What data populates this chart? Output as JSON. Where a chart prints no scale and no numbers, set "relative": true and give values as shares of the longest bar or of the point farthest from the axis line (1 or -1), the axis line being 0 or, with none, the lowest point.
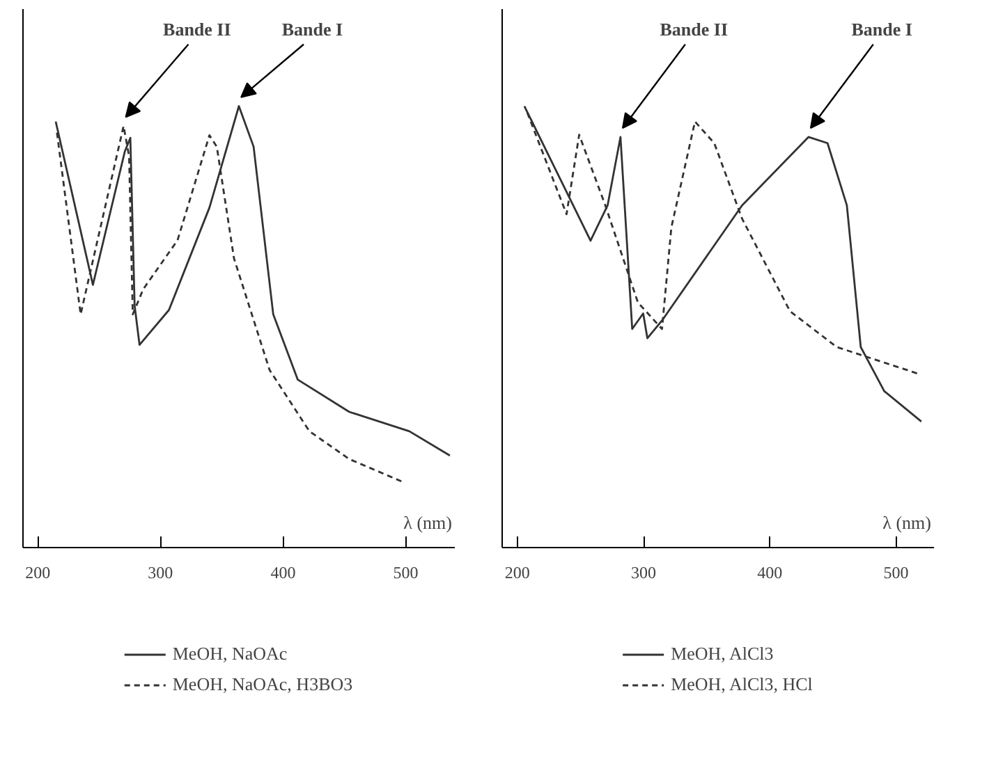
{
  "chart_data": [
    {
      "type": "line",
      "relative": true,
      "xlabel": "λ (nm)",
      "xlim": [
        188,
        540
      ],
      "xticks": [
        200,
        300,
        400,
        500
      ],
      "legend": "bottom",
      "grid": false,
      "series": [
        {
          "name": "MeOH, NaOAc",
          "color": "#333333",
          "line_style": "solid",
          "x": [
            214.7,
            245,
            271,
            275.5,
            279,
            283,
            307,
            340,
            364,
            376,
            392,
            412,
            454,
            503,
            536
          ],
          "values": [
            0.965,
            0.595,
            0.897,
            0.928,
            0.548,
            0.459,
            0.538,
            0.77,
            1.0,
            0.908,
            0.528,
            0.38,
            0.307,
            0.263,
            0.208
          ]
        },
        {
          "name": "MeOH, NaOAc, H3BO3",
          "color": "#333333",
          "line_style": "dashed",
          "x": [
            215.7,
            235,
            270,
            274.5,
            277.5,
            286,
            314,
            340,
            346,
            360,
            389,
            421.5,
            454,
            497
          ],
          "values": [
            0.94,
            0.528,
            0.955,
            0.886,
            0.528,
            0.585,
            0.696,
            0.934,
            0.908,
            0.655,
            0.402,
            0.263,
            0.2,
            0.149
          ]
        }
      ],
      "annotations": [
        {
          "text": "Bande II",
          "x": 270,
          "y": 0.955
        },
        {
          "text": "Bande I",
          "x": 364,
          "y": 1.0
        }
      ]
    },
    {
      "type": "line",
      "relative": true,
      "xlabel": "λ (nm)",
      "xlim": [
        188,
        530
      ],
      "xticks": [
        200,
        300,
        400,
        500
      ],
      "legend": "bottom",
      "grid": false,
      "series": [
        {
          "name": "MeOH, AlCl3",
          "color": "#333333",
          "line_style": "solid",
          "x": [
            205.6,
            258,
            271.5,
            281.7,
            291,
            299.7,
            303,
            314.6,
            378,
            430.6,
            445.7,
            461,
            472,
            490.6,
            520
          ],
          "values": [
            1.0,
            0.695,
            0.775,
            0.93,
            0.495,
            0.53,
            0.474,
            0.514,
            0.775,
            0.93,
            0.916,
            0.775,
            0.454,
            0.354,
            0.285
          ]
        },
        {
          "name": "MeOH, AlCl3, HCl",
          "color": "#333333",
          "line_style": "dashed",
          "x": [
            207.9,
            239,
            249,
            269.7,
            295.5,
            314.6,
            322,
            340.7,
            356,
            378,
            416,
            453,
            517
          ],
          "values": [
            0.985,
            0.755,
            0.935,
            0.775,
            0.555,
            0.495,
            0.725,
            0.965,
            0.916,
            0.745,
            0.535,
            0.454,
            0.394
          ]
        }
      ],
      "annotations": [
        {
          "text": "Bande II",
          "x": 281.7,
          "y": 0.93
        },
        {
          "text": "Bande I",
          "x": 430.6,
          "y": 0.93
        }
      ]
    }
  ]
}
